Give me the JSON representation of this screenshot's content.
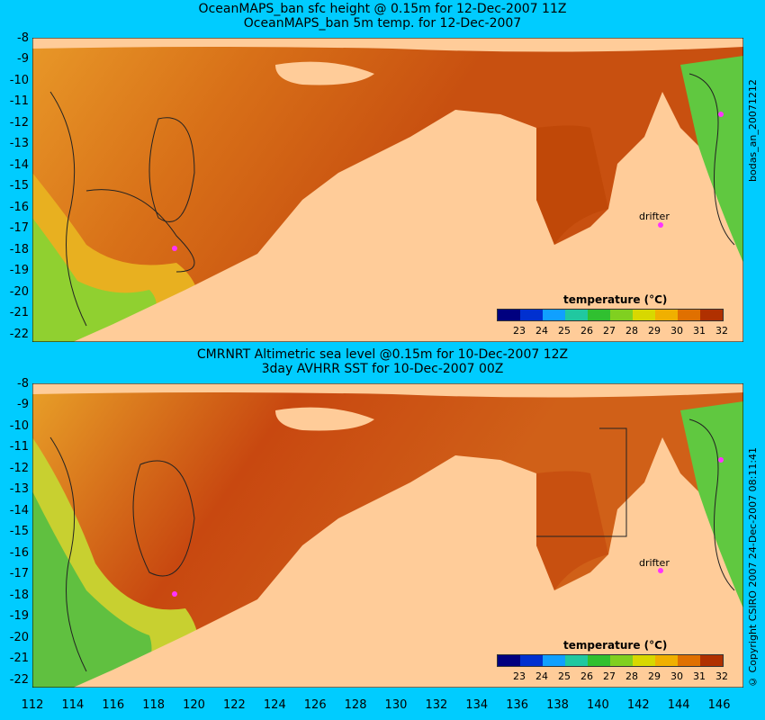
{
  "panels": [
    {
      "title_line1": "OceanMAPS_ban sfc height @ 0.15m for 12-Dec-2007 11Z",
      "title_line2": "OceanMAPS_ban 5m temp. for 12-Dec-2007",
      "side_label": "bodas_an_20071212",
      "drifter_label": "drifter",
      "legend_title": "temperature (°C)"
    },
    {
      "title_line1": "CMRNRT Altimetric sea level  @0.15m  for 10-Dec-2007 12Z",
      "title_line2": "3day AVHRR SST for 10-Dec-2007 00Z",
      "side_label": "© Copyright CSIRO 2007   24-Dec-2007 08:11:41",
      "drifter_label": "drifter",
      "legend_title": "temperature (°C)"
    }
  ],
  "y_ticks": [
    "-8",
    "-9",
    "-10",
    "-11",
    "-12",
    "-13",
    "-14",
    "-15",
    "-16",
    "-17",
    "-18",
    "-19",
    "-20",
    "-21",
    "-22"
  ],
  "x_ticks": [
    "112",
    "114",
    "116",
    "118",
    "120",
    "122",
    "124",
    "126",
    "128",
    "130",
    "132",
    "134",
    "136",
    "138",
    "140",
    "142",
    "144",
    "146"
  ],
  "legend_ticks": [
    "23",
    "24",
    "25",
    "26",
    "27",
    "28",
    "29",
    "30",
    "31",
    "32"
  ],
  "legend_colors": [
    "#00007f",
    "#0030d0",
    "#10a0ff",
    "#20c8a0",
    "#30c030",
    "#80d020",
    "#d8d800",
    "#f0b000",
    "#e07000",
    "#b03000"
  ],
  "colors": {
    "background": "#00ccff",
    "land": "#ffcc99",
    "missing": "#b0b0b0",
    "ocean_hot": "#b83a08",
    "ocean_warm": "#e08018",
    "ocean_mild": "#f0b020",
    "ocean_cool": "#60d040",
    "drifter": "#ff33ff"
  }
}
